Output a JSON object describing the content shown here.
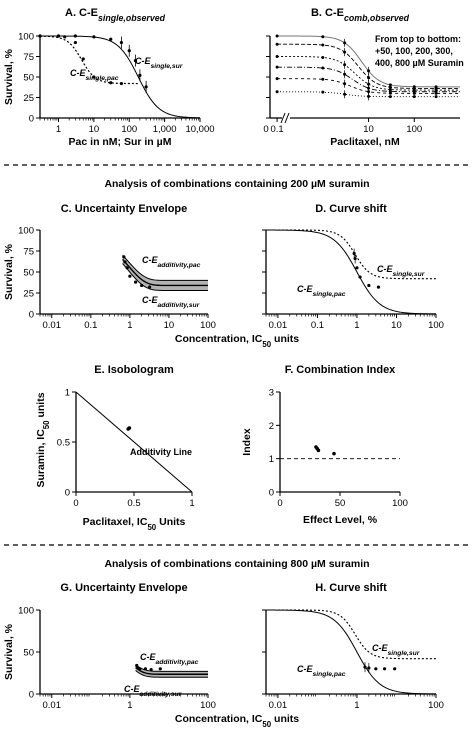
{
  "sections": [
    "Analysis of combinations containing 200 µM suramin",
    "Analysis of combinations containing 800 µM suramin"
  ],
  "chart_data": [
    {
      "id": "A",
      "type": "line",
      "title": "A. C-E",
      "title_sub": "single,observed",
      "xscale": "log",
      "xlim": [
        0.3,
        10000
      ],
      "ylim": [
        0,
        100
      ],
      "xticks": [
        1,
        10,
        100,
        1000,
        10000
      ],
      "xticklabels": [
        "1",
        "10",
        "100",
        "1,000",
        "10,000"
      ],
      "yticks": [
        0,
        25,
        50,
        75,
        100
      ],
      "ylabel": "Survival, %",
      "xlabel": "Pac in nM; Sur in µM",
      "series": [
        {
          "label": "C-E",
          "label_sub": "single,sur",
          "style": "solid",
          "curve": {
            "top": 100,
            "bottom": 0,
            "ec50": 180,
            "hill": 1.5
          },
          "x": [
            0.3,
            1,
            3,
            10,
            30,
            60,
            100,
            150,
            200,
            300
          ],
          "y": [
            100,
            100,
            100,
            99,
            96,
            92,
            82,
            70,
            52,
            38
          ]
        },
        {
          "label": "C-E",
          "label_sub": "single,pac",
          "style": "dotted",
          "curve": {
            "top": 100,
            "bottom": 42,
            "ec50": 4.5,
            "hill": 2.2
          },
          "x": [
            0.3,
            1,
            1.5,
            3,
            5,
            10,
            30,
            60
          ],
          "y": [
            100,
            100,
            99,
            92,
            72,
            50,
            43,
            42
          ]
        }
      ]
    },
    {
      "id": "B",
      "type": "line",
      "title": "B. C-E",
      "title_sub": "comb,observed",
      "xscale": "log",
      "xlim": [
        0.07,
        1000
      ],
      "ylim": [
        0,
        100
      ],
      "xticks": [
        0.1,
        10,
        100
      ],
      "xticklabels": [
        "0.1",
        "10",
        "100"
      ],
      "zero_label": "0",
      "xlabel": "Paclitaxel, nM",
      "note": [
        "From top to bottom:",
        "+50, 100, 200, 300,",
        "400, 800 µM Suramin"
      ],
      "series": [
        {
          "name": "+50",
          "top": 100,
          "bottom": 38,
          "ec50": 7
        },
        {
          "name": "+100",
          "top": 90,
          "bottom": 36,
          "ec50": 6
        },
        {
          "name": "+200",
          "top": 75,
          "bottom": 34,
          "ec50": 5
        },
        {
          "name": "+300",
          "top": 62,
          "bottom": 32,
          "ec50": 4.5
        },
        {
          "name": "+400",
          "top": 48,
          "bottom": 30,
          "ec50": 4
        },
        {
          "name": "+800",
          "top": 32,
          "bottom": 26,
          "ec50": 3
        }
      ],
      "point_x": [
        0.1,
        1,
        3,
        10,
        30,
        100,
        300
      ]
    },
    {
      "id": "C",
      "type": "line",
      "title": "C. Uncertainty Envelope",
      "xscale": "log",
      "xlim": [
        0.005,
        100
      ],
      "ylim": [
        0,
        100
      ],
      "xticks": [
        0.01,
        0.1,
        1,
        10,
        100
      ],
      "xticklabels": [
        "0.01",
        "0.1",
        "1",
        "10",
        "100"
      ],
      "yticks": [
        0,
        25,
        50,
        75,
        100
      ],
      "ylabel": "Survival, %",
      "series": [
        {
          "label": "C-E",
          "label_sub": "additivity,pac",
          "y0": 70,
          "yinf": 40,
          "x0": 0.65,
          "k": 1.1
        },
        {
          "label": "C-E",
          "label_sub": "additivity,sur",
          "y0": 60,
          "yinf": 28,
          "x0": 0.65,
          "k": 1.1
        }
      ],
      "points": {
        "x": [
          0.7,
          0.75,
          0.85,
          1.0,
          1.4,
          2.0,
          3.2
        ],
        "y": [
          68,
          62,
          55,
          45,
          38,
          34,
          32
        ]
      }
    },
    {
      "id": "D",
      "type": "line",
      "title": "D. Curve shift",
      "xscale": "log",
      "xlim": [
        0.005,
        100
      ],
      "ylim": [
        0,
        100
      ],
      "xticks": [
        0.01,
        0.1,
        1,
        10,
        100
      ],
      "xticklabels": [
        "0.01",
        "0.1",
        "1",
        "10",
        "100"
      ],
      "yticks": [
        0,
        25,
        50,
        75,
        100
      ],
      "series": [
        {
          "label": "C-E",
          "label_sub": "single,sur",
          "style": "dotted",
          "curve": {
            "top": 100,
            "bottom": 42,
            "ec50": 0.9,
            "hill": 2.3
          }
        },
        {
          "label": "C-E",
          "label_sub": "single,pac",
          "style": "solid",
          "curve": {
            "top": 100,
            "bottom": 0,
            "ec50": 1.0,
            "hill": 1.5
          }
        }
      ],
      "points": {
        "x": [
          0.85,
          0.9,
          1.0,
          1.2,
          2.0,
          3.5
        ],
        "y": [
          72,
          66,
          55,
          44,
          34,
          32
        ]
      }
    },
    {
      "id": "E",
      "type": "scatter",
      "title": "E. Isobologram",
      "xlim": [
        0,
        1
      ],
      "ylim": [
        0,
        1
      ],
      "xticks": [
        0,
        0.5,
        1
      ],
      "xticklabels": [
        "0",
        "0.5",
        "1"
      ],
      "yticks": [
        0,
        0.5,
        1
      ],
      "yticklabels": [
        "0",
        "0.5",
        "1"
      ],
      "ylabel": "Suramin, IC",
      "ylabel_sub": "50",
      "ylabel_tail": " units",
      "xlabel": "Paclitaxel, IC",
      "xlabel_sub": "50",
      "xlabel_tail": " Units",
      "line_label": "Additivity Line",
      "points": {
        "x": [
          0.45,
          0.46
        ],
        "y": [
          0.63,
          0.64
        ]
      }
    },
    {
      "id": "F",
      "type": "scatter",
      "title": "F. Combination Index",
      "xlim": [
        0,
        100
      ],
      "ylim": [
        0,
        3
      ],
      "xticks": [
        0,
        50,
        100
      ],
      "xticklabels": [
        "0",
        "50",
        "100"
      ],
      "yticks": [
        0,
        1,
        2,
        3
      ],
      "yticklabels": [
        "0",
        "1",
        "2",
        "3"
      ],
      "ylabel": "Index",
      "xlabel": "Effect Level, %",
      "reference_y": 1,
      "points": {
        "x": [
          30,
          31,
          32,
          45
        ],
        "y": [
          1.35,
          1.3,
          1.25,
          1.15
        ]
      }
    },
    {
      "id": "G",
      "type": "line",
      "title": "G. Uncertainty Envelope",
      "xscale": "log",
      "xlim": [
        0.005,
        100
      ],
      "ylim": [
        0,
        100
      ],
      "xticks": [
        0.01,
        1,
        100
      ],
      "xticklabels": [
        "0.01",
        "1",
        "100"
      ],
      "yticks": [
        0,
        50,
        100
      ],
      "ylabel": "Survival, %",
      "series": [
        {
          "label": "C-E",
          "label_sub": "additivity,pac",
          "y0": 35,
          "yinf": 27,
          "x0": 1.4,
          "k": 1.5
        },
        {
          "label": "C-E",
          "label_sub": "additivity,sur",
          "y0": 28,
          "yinf": 20,
          "x0": 1.4,
          "k": 1.5
        }
      ],
      "points": {
        "x": [
          1.5,
          1.6,
          1.8,
          2.5,
          3.5,
          6.0
        ],
        "y": [
          34,
          31,
          30,
          30,
          29,
          30
        ]
      }
    },
    {
      "id": "H",
      "type": "line",
      "title": "H. Curve shift",
      "xscale": "log",
      "xlim": [
        0.005,
        100
      ],
      "ylim": [
        0,
        100
      ],
      "xticks": [
        0.01,
        1,
        100
      ],
      "xticklabels": [
        "0.01",
        "1",
        "100"
      ],
      "yticks": [
        0,
        50,
        100
      ],
      "series": [
        {
          "label": "C-E",
          "label_sub": "single,sur",
          "style": "dotted",
          "curve": {
            "top": 100,
            "bottom": 42,
            "ec50": 0.9,
            "hill": 2.3
          }
        },
        {
          "label": "C-E",
          "label_sub": "single,pac",
          "style": "solid",
          "curve": {
            "top": 100,
            "bottom": 0,
            "ec50": 1.0,
            "hill": 1.5
          }
        }
      ],
      "points": {
        "x": [
          1.6,
          2.0,
          3.0,
          5.0,
          9.0
        ],
        "y": [
          32,
          31,
          30,
          30,
          30
        ]
      }
    }
  ],
  "shared_xlabel": "Concentration, IC",
  "shared_xlabel_sub": "50",
  "shared_xlabel_tail": " units"
}
